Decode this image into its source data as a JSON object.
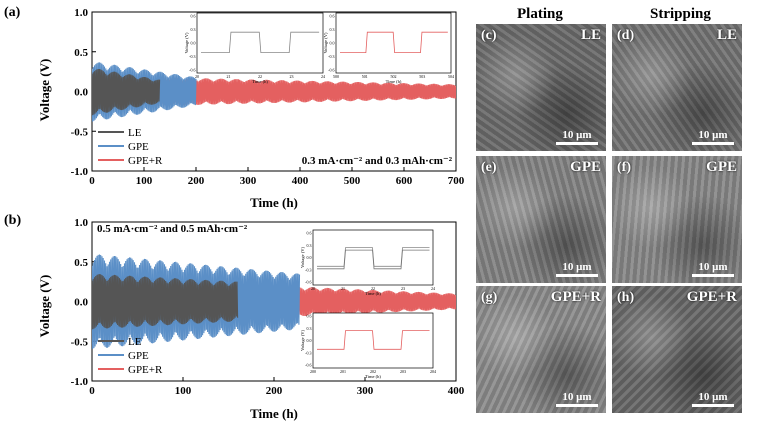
{
  "panel_a": {
    "letter": "(a)",
    "ylabel": "Voltage (V)",
    "xlabel": "Time (h)",
    "condition": "0.3 mA·cm⁻² and 0.3 mAh·cm⁻²",
    "inset_axis_label": "Voltage (V)",
    "inset_time_label": "Time (h)"
  },
  "panel_b": {
    "letter": "(b)",
    "ylabel": "Voltage (V)",
    "xlabel": "Time (h)",
    "condition": "0.5 mA·cm⁻² and 0.5 mAh·cm⁻²",
    "inset_axis_label": "Voltage (V)",
    "inset_time_label": "Time (h)"
  },
  "sem": {
    "col_plating": "Plating",
    "col_stripping": "Stripping",
    "panels": [
      {
        "letter": "(c)",
        "label": "LE",
        "scale": "10 μm",
        "tone": "#6d6d6d"
      },
      {
        "letter": "(d)",
        "label": "LE",
        "scale": "10 μm",
        "tone": "#757575"
      },
      {
        "letter": "(e)",
        "label": "GPE",
        "scale": "10 μm",
        "tone": "#858585"
      },
      {
        "letter": "(f)",
        "label": "GPE",
        "scale": "10 μm",
        "tone": "#8a8a8a"
      },
      {
        "letter": "(g)",
        "label": "GPE+R",
        "scale": "10 μm",
        "tone": "#8e8e8e"
      },
      {
        "letter": "(h)",
        "label": "GPE+R",
        "scale": "10 μm",
        "tone": "#6a6a6a"
      }
    ]
  },
  "colors": {
    "LE": "#555555",
    "GPE": "#5b8fc7",
    "GPE+R": "#e46060"
  },
  "chart_data": [
    {
      "type": "line",
      "title": "",
      "xlabel": "Time (h)",
      "ylabel": "Voltage (V)",
      "xlim": [
        0,
        700
      ],
      "ylim": [
        -1.0,
        1.0
      ],
      "xticks": [
        "0",
        "100",
        "200",
        "300",
        "400",
        "500",
        "600",
        "700"
      ],
      "yticks": [
        "-1.0",
        "-0.5",
        "0.0",
        "0.5",
        "1.0"
      ],
      "legend": "bottom-left",
      "series": [
        {
          "name": "LE",
          "t_end": 130,
          "amp_start": 0.3,
          "amp_end": 0.15
        },
        {
          "name": "GPE",
          "t_end": 200,
          "amp_start": 0.38,
          "amp_end": 0.18
        },
        {
          "name": "GPE+R",
          "t_end": 700,
          "amp_start": 0.2,
          "amp_end": 0.09
        }
      ],
      "annotation": "0.3 mA·cm⁻² and 0.3 mAh·cm⁻²",
      "insets": [
        {
          "xticks": [
            "20",
            "21",
            "22",
            "23",
            "24"
          ],
          "yticks": [
            "0.6",
            "0.3",
            "0.0",
            "-0.3",
            "-0.6"
          ]
        },
        {
          "xticks": [
            "500",
            "501",
            "502",
            "503",
            "504"
          ],
          "yticks": [
            "0.6",
            "0.3",
            "0.0",
            "-0.3",
            "-0.6"
          ]
        }
      ]
    },
    {
      "type": "line",
      "title": "",
      "xlabel": "Time (h)",
      "ylabel": "Voltage (V)",
      "xlim": [
        0,
        400
      ],
      "ylim": [
        -1.0,
        1.0
      ],
      "xticks": [
        "0",
        "100",
        "200",
        "300",
        "400"
      ],
      "yticks": [
        "-1.0",
        "-0.5",
        "0.0",
        "0.5",
        "1.0"
      ],
      "legend": "bottom-left",
      "series": [
        {
          "name": "LE",
          "t_end": 160,
          "amp_start": 0.35,
          "amp_end": 0.25
        },
        {
          "name": "GPE",
          "t_end": 228,
          "amp_start": 0.6,
          "amp_end": 0.35
        },
        {
          "name": "GPE+R",
          "t_end": 400,
          "amp_start": 0.3,
          "amp_end": 0.1
        }
      ],
      "annotation": "0.5 mA·cm⁻² and 0.5 mAh·cm⁻²",
      "insets": [
        {
          "xticks": [
            "20",
            "21",
            "22",
            "23",
            "24"
          ],
          "yticks": [
            "0.6",
            "0.3",
            "0.0",
            "-0.3",
            "-0.6"
          ]
        },
        {
          "xticks": [
            "200",
            "201",
            "202",
            "203",
            "204"
          ],
          "yticks": [
            "0.6",
            "0.3",
            "0.0",
            "-0.3",
            "-0.6"
          ]
        }
      ]
    }
  ]
}
